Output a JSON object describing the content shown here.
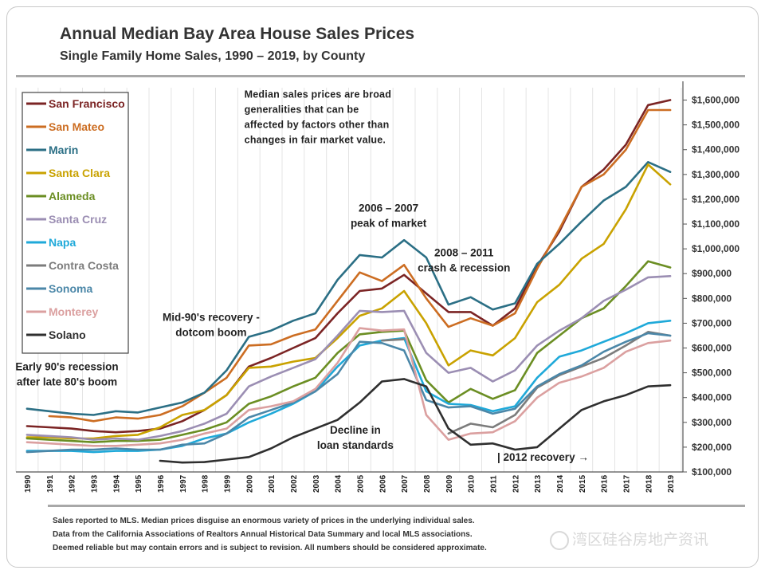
{
  "header": {
    "title": "Annual Median Bay Area House Sales Prices",
    "subtitle": "Single Family Home Sales, 1990 – 2019, by County"
  },
  "footnotes": [
    "Sales reported to MLS. Median prices disguise an enormous variety of prices in the underlying individual sales.",
    "Data from the California Associations of Realtors Annual Historical Data Summary and local MLS associations.",
    "Deemed reliable but may contain errors and is subject to revision. All numbers should be considered approximate."
  ],
  "watermark": {
    "text": "湾区硅谷房地产资讯"
  },
  "chart_data": {
    "type": "line",
    "title": "Annual Median Bay Area House Sales Prices",
    "subtitle": "Single Family Home Sales, 1990 – 2019, by County",
    "x": [
      "1990",
      "1991",
      "1992",
      "1993",
      "1994",
      "1995",
      "1996",
      "1997",
      "1998",
      "1999",
      "2000",
      "2001",
      "2002",
      "2003",
      "2004",
      "2005",
      "2006",
      "2007",
      "2008",
      "2009",
      "2010",
      "2011",
      "2012",
      "2013",
      "2014",
      "2015",
      "2016",
      "2017",
      "2018",
      "2019"
    ],
    "ylim": [
      100000,
      1650000
    ],
    "yticks": [
      100000,
      200000,
      300000,
      400000,
      500000,
      600000,
      700000,
      800000,
      900000,
      1000000,
      1100000,
      1200000,
      1300000,
      1400000,
      1500000,
      1600000
    ],
    "ytick_labels": [
      "$100,000",
      "$200,000",
      "$300,000",
      "$400,000",
      "$500,000",
      "$600,000",
      "$700,000",
      "$800,000",
      "$900,000",
      "$1,000,000",
      "$1,100,000",
      "$1,200,000",
      "$1,300,000",
      "$1,400,000",
      "$1,500,000",
      "$1,600,000"
    ],
    "y_axis_side": "right",
    "grid": "vertical",
    "legend_position": "top-left",
    "series": [
      {
        "name": "San Francisco",
        "color": "#7b2424",
        "values": [
          285000,
          280000,
          275000,
          265000,
          260000,
          265000,
          275000,
          305000,
          350000,
          410000,
          525000,
          560000,
          600000,
          640000,
          740000,
          830000,
          840000,
          895000,
          820000,
          745000,
          745000,
          690000,
          760000,
          930000,
          1070000,
          1250000,
          1320000,
          1420000,
          1580000,
          1600000
        ]
      },
      {
        "name": "San Mateo",
        "color": "#cc6d22",
        "values": [
          null,
          325000,
          320000,
          305000,
          320000,
          315000,
          330000,
          365000,
          420000,
          480000,
          610000,
          615000,
          650000,
          675000,
          790000,
          905000,
          870000,
          935000,
          800000,
          685000,
          720000,
          690000,
          740000,
          920000,
          1080000,
          1250000,
          1300000,
          1400000,
          1560000,
          1560000
        ]
      },
      {
        "name": "Marin",
        "color": "#2b6f85",
        "values": [
          355000,
          345000,
          335000,
          330000,
          345000,
          340000,
          360000,
          380000,
          420000,
          510000,
          645000,
          670000,
          710000,
          740000,
          875000,
          975000,
          965000,
          1035000,
          965000,
          775000,
          805000,
          755000,
          780000,
          940000,
          1020000,
          1110000,
          1195000,
          1250000,
          1350000,
          1310000
        ]
      },
      {
        "name": "Santa Clara",
        "color": "#c9a200",
        "values": [
          240000,
          240000,
          235000,
          235000,
          245000,
          250000,
          280000,
          330000,
          350000,
          410000,
          520000,
          525000,
          545000,
          560000,
          640000,
          730000,
          760000,
          830000,
          700000,
          530000,
          590000,
          570000,
          640000,
          785000,
          855000,
          960000,
          1020000,
          1160000,
          1340000,
          1260000
        ]
      },
      {
        "name": "Alameda",
        "color": "#6b8e23",
        "values": [
          235000,
          230000,
          225000,
          220000,
          225000,
          225000,
          230000,
          250000,
          270000,
          300000,
          375000,
          405000,
          445000,
          480000,
          580000,
          655000,
          665000,
          670000,
          470000,
          380000,
          435000,
          395000,
          430000,
          580000,
          650000,
          720000,
          760000,
          850000,
          950000,
          925000
        ]
      },
      {
        "name": "Santa Cruz",
        "color": "#9b8eb3",
        "values": [
          250000,
          245000,
          240000,
          230000,
          235000,
          230000,
          245000,
          265000,
          295000,
          335000,
          445000,
          485000,
          520000,
          555000,
          650000,
          750000,
          745000,
          750000,
          580000,
          500000,
          520000,
          465000,
          510000,
          610000,
          670000,
          720000,
          790000,
          835000,
          885000,
          890000
        ]
      },
      {
        "name": "Napa",
        "color": "#1fa9d9",
        "values": [
          185000,
          185000,
          185000,
          180000,
          185000,
          185000,
          190000,
          205000,
          235000,
          255000,
          300000,
          335000,
          375000,
          425000,
          525000,
          610000,
          630000,
          640000,
          425000,
          375000,
          370000,
          345000,
          365000,
          480000,
          565000,
          590000,
          625000,
          660000,
          700000,
          710000
        ]
      },
      {
        "name": "Contra Costa",
        "color": "#7c7c7c",
        "values": [
          null,
          null,
          null,
          null,
          null,
          null,
          null,
          null,
          null,
          null,
          null,
          null,
          null,
          null,
          null,
          null,
          630000,
          635000,
          null,
          255000,
          295000,
          280000,
          330000,
          440000,
          490000,
          525000,
          560000,
          610000,
          665000,
          650000
        ]
      },
      {
        "name": "Sonoma",
        "color": "#4b87a8",
        "values": [
          180000,
          185000,
          190000,
          190000,
          195000,
          190000,
          190000,
          210000,
          215000,
          255000,
          320000,
          350000,
          380000,
          425000,
          495000,
          625000,
          620000,
          590000,
          390000,
          360000,
          365000,
          335000,
          355000,
          445000,
          495000,
          530000,
          585000,
          625000,
          660000,
          650000
        ]
      },
      {
        "name": "Monterey",
        "color": "#dba0a0",
        "values": [
          220000,
          215000,
          210000,
          205000,
          205000,
          210000,
          215000,
          230000,
          255000,
          275000,
          350000,
          365000,
          385000,
          435000,
          540000,
          680000,
          670000,
          675000,
          330000,
          230000,
          255000,
          260000,
          305000,
          400000,
          460000,
          485000,
          520000,
          585000,
          620000,
          630000
        ]
      },
      {
        "name": "Solano",
        "color": "#2f2f2f",
        "values": [
          null,
          null,
          null,
          null,
          null,
          null,
          145000,
          138000,
          140000,
          150000,
          160000,
          195000,
          240000,
          275000,
          310000,
          380000,
          465000,
          475000,
          445000,
          275000,
          210000,
          215000,
          190000,
          200000,
          275000,
          350000,
          385000,
          410000,
          445000,
          450000
        ]
      }
    ],
    "annotations": [
      {
        "text": [
          "Median sales prices are broad",
          "generalities that can be",
          "affected by factors other than",
          "changes in fair market value."
        ],
        "x": "1999.8",
        "y": 1610000
      },
      {
        "text": [
          "2006 – 2007",
          "peak of market"
        ],
        "x": "2006.3",
        "y": 1150000
      },
      {
        "text": [
          "2008 – 2011",
          "crash & recession"
        ],
        "x": "2009.7",
        "y": 970000
      },
      {
        "text": [
          "Mid-90's recovery -",
          "dotcom boom"
        ],
        "x": "1998.3",
        "y": 710000
      },
      {
        "text": [
          "Early 90's recession",
          "after late 80's boom"
        ],
        "x": "1991.8",
        "y": 510000
      },
      {
        "text": [
          "Decline in",
          "loan standards"
        ],
        "x": "2004.8",
        "y": 255000
      },
      {
        "text": [
          "| 2012 recovery →"
        ],
        "x": "2011.2",
        "y": 145000
      }
    ]
  }
}
